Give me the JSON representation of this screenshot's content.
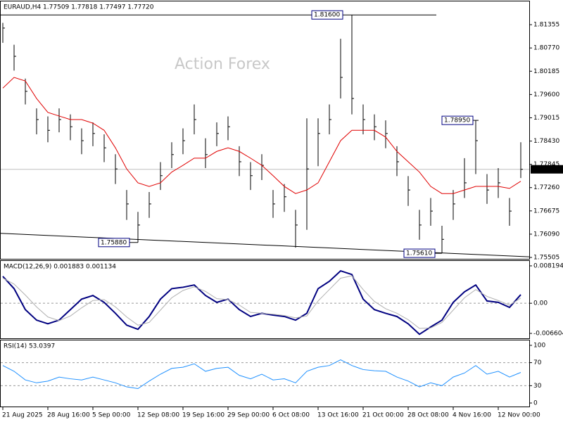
{
  "header": "EURAUD,H4  1.77509 1.77818 1.77497 1.77720",
  "watermark": "Action Forex",
  "chart_data": [
    {
      "type": "ohlc",
      "color": "#000000",
      "categories": [
        "21 Aug 2025",
        null,
        null,
        null,
        "28 Aug 16:00",
        null,
        null,
        null,
        "5 Sep 00:00",
        null,
        null,
        null,
        "12 Sep 08:00",
        null,
        null,
        null,
        "19 Sep 16:00",
        null,
        null,
        null,
        "29 Sep 00:00",
        null,
        null,
        null,
        "6 Oct 08:00",
        null,
        null,
        null,
        "13 Oct 16:00",
        null,
        null,
        null,
        "21 Oct 00:00",
        null,
        null,
        null,
        "28 Oct 08:00",
        null,
        null,
        null,
        "4 Nov 16:00",
        null,
        null,
        null,
        "12 Nov 00:00",
        null,
        null
      ],
      "high": [
        1.814,
        1.8085,
        1.8,
        1.7925,
        1.7905,
        1.7925,
        1.791,
        1.7875,
        1.789,
        1.786,
        1.781,
        1.772,
        1.7665,
        1.7715,
        1.779,
        1.784,
        1.7875,
        1.7935,
        1.785,
        1.789,
        1.7905,
        1.783,
        1.779,
        1.781,
        1.772,
        1.7735,
        1.767,
        1.79,
        1.79,
        1.7935,
        1.81,
        1.816,
        1.7935,
        1.791,
        1.7895,
        1.783,
        1.7755,
        1.767,
        1.77,
        1.763,
        1.772,
        1.78,
        1.7895,
        1.776,
        1.7775,
        1.77,
        1.784
      ],
      "low": [
        1.809,
        1.802,
        1.7935,
        1.786,
        1.784,
        1.7865,
        1.7845,
        1.781,
        1.783,
        1.779,
        1.7735,
        1.7645,
        1.7588,
        1.765,
        1.772,
        1.7775,
        1.781,
        1.786,
        1.7775,
        1.783,
        1.7845,
        1.7755,
        1.772,
        1.7745,
        1.765,
        1.7665,
        1.7575,
        1.762,
        1.778,
        1.786,
        1.795,
        1.791,
        1.786,
        1.7845,
        1.7825,
        1.7755,
        1.768,
        1.7595,
        1.763,
        1.7561,
        1.7645,
        1.77,
        1.776,
        1.7685,
        1.77,
        1.763,
        1.775
      ],
      "close": [
        1.8127,
        1.8056,
        1.7968,
        1.7897,
        1.787,
        1.7897,
        1.7879,
        1.7844,
        1.7862,
        1.7826,
        1.7773,
        1.7685,
        1.7632,
        1.7685,
        1.7756,
        1.7809,
        1.7844,
        1.7897,
        1.7809,
        1.7862,
        1.7879,
        1.7791,
        1.7756,
        1.7782,
        1.7685,
        1.7703,
        1.7632,
        1.7773,
        1.7862,
        1.7897,
        1.8003,
        1.795,
        1.7897,
        1.7879,
        1.7862,
        1.7791,
        1.772,
        1.7632,
        1.7667,
        1.7596,
        1.7685,
        1.7738,
        1.7844,
        1.772,
        1.7738,
        1.7667,
        1.7772
      ],
      "ma": {
        "color": "#e00000",
        "values": [
          1.7976,
          1.8003,
          1.7994,
          1.795,
          1.7915,
          1.7906,
          1.7897,
          1.7897,
          1.7888,
          1.787,
          1.7826,
          1.7773,
          1.7738,
          1.7729,
          1.7738,
          1.7765,
          1.7782,
          1.78,
          1.78,
          1.7817,
          1.7826,
          1.7817,
          1.78,
          1.7782,
          1.7756,
          1.7729,
          1.7711,
          1.772,
          1.7738,
          1.7791,
          1.7844,
          1.787,
          1.787,
          1.787,
          1.7853,
          1.7817,
          1.7791,
          1.7765,
          1.7729,
          1.7711,
          1.7711,
          1.772,
          1.7729,
          1.7729,
          1.7729,
          1.7724,
          1.7742
        ]
      },
      "ylim": [
        1.7547,
        1.8194
      ],
      "yticks": [
        {
          "value": 1.81355,
          "label": "1.81355"
        },
        {
          "value": 1.8077,
          "label": "1.80770"
        },
        {
          "value": 1.80185,
          "label": "1.80185"
        },
        {
          "value": 1.796,
          "label": "1.79600"
        },
        {
          "value": 1.79015,
          "label": "1.79015"
        },
        {
          "value": 1.7843,
          "label": "1.78430"
        },
        {
          "value": 1.77845,
          "label": "1.77845"
        },
        {
          "value": 1.7726,
          "label": "1.77260"
        },
        {
          "value": 1.76675,
          "label": "1.76675"
        },
        {
          "value": 1.7609,
          "label": "1.76090"
        },
        {
          "value": 1.75505,
          "label": "1.75505"
        }
      ],
      "last_price": {
        "value": 1.7772,
        "label": "1.77720"
      },
      "annotations": [
        {
          "value": 1.816,
          "label": "1.81600"
        },
        {
          "value": 1.7895,
          "label": "1.78950"
        },
        {
          "value": 1.7588,
          "label": "1.75880"
        },
        {
          "value": 1.7561,
          "label": "1.75610"
        }
      ],
      "trendline": [
        1.7611,
        1.7552
      ]
    },
    {
      "type": "macd",
      "title": "MACD(12,26,9) 0.001883 0.001134",
      "series": [
        {
          "color": "#000080",
          "values": [
            0.0059,
            0.0032,
            -0.0014,
            -0.0037,
            -0.0045,
            -0.0037,
            -0.0014,
            0.0009,
            0.0017,
            0.0002,
            -0.0022,
            -0.0048,
            -0.0057,
            -0.0029,
            0.0009,
            0.0032,
            0.0035,
            0.004,
            0.0017,
            0.0002,
            0.0009,
            -0.0014,
            -0.0029,
            -0.0022,
            -0.0026,
            -0.0029,
            -0.0037,
            -0.0022,
            0.0032,
            0.0048,
            0.0071,
            0.0063,
            0.0009,
            -0.0014,
            -0.0022,
            -0.0029,
            -0.0045,
            -0.0068,
            -0.0052,
            -0.0037,
            0.0002,
            0.0025,
            0.004,
            0.0005,
            0.0002,
            -0.0009,
            0.001883
          ]
        },
        {
          "color": "#b0b0b0",
          "values": [
            0.0055,
            0.0042,
            0.0018,
            -0.0008,
            -0.003,
            -0.0038,
            -0.0028,
            -0.001,
            0.0006,
            0.0008,
            -0.0008,
            -0.003,
            -0.0048,
            -0.0042,
            -0.0015,
            0.0012,
            0.0028,
            0.0036,
            0.0026,
            0.001,
            0.0008,
            -0.0004,
            -0.002,
            -0.0022,
            -0.0024,
            -0.0027,
            -0.0032,
            -0.0028,
            0.0005,
            0.003,
            0.0055,
            0.006,
            0.003,
            0.0004,
            -0.0012,
            -0.0022,
            -0.0036,
            -0.0055,
            -0.0054,
            -0.0042,
            -0.0015,
            0.0012,
            0.003,
            0.0015,
            0.0006,
            -0.0004,
            0.001134
          ]
        }
      ],
      "ylim": [
        -0.00768,
        0.00927
      ],
      "yticks": [
        0.008194,
        {
          "value": 0,
          "label": "0.00"
        },
        -0.006604
      ]
    },
    {
      "type": "rsi",
      "title": "RSI(14) 53.0397",
      "series": [
        {
          "color": "#1e90ff",
          "values": [
            65,
            55,
            40,
            35,
            38,
            45,
            42,
            40,
            45,
            40,
            35,
            28,
            25,
            38,
            50,
            60,
            62,
            68,
            55,
            60,
            62,
            48,
            42,
            50,
            40,
            42,
            35,
            55,
            62,
            65,
            75,
            65,
            58,
            56,
            55,
            45,
            38,
            28,
            35,
            30,
            45,
            52,
            65,
            50,
            55,
            45,
            53.0397
          ]
        }
      ],
      "ylim": [
        0,
        100
      ],
      "yticks": [
        100,
        70,
        30,
        0
      ]
    }
  ]
}
